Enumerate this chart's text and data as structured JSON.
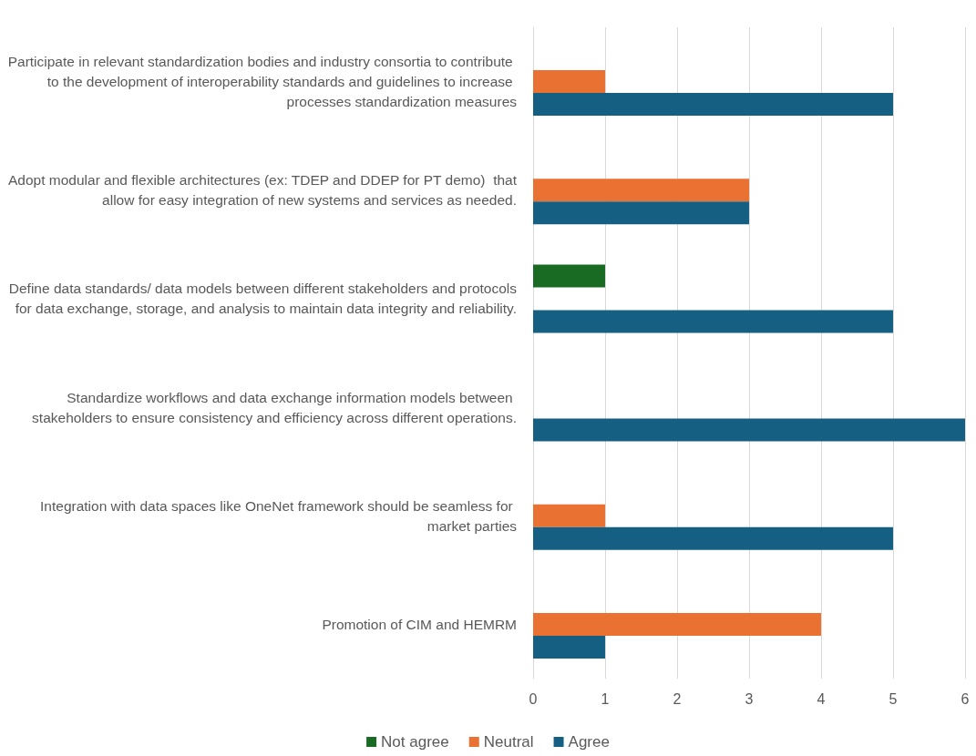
{
  "chart_data": {
    "type": "bar",
    "orientation": "horizontal",
    "categories": [
      "Participate in relevant standardization bodies and industry consortia to contribute to the development of interoperability standards and guidelines to increase processes standardization measures",
      "Adopt modular and flexible architectures (ex: TDEP and DDEP for PT demo)  that allow for easy integration of new systems and services as needed.",
      "Define data standards/ data models between different stakeholders and protocols for data exchange, storage, and analysis to maintain data integrity and reliability.",
      "Standardize workflows and data exchange information models between stakeholders to ensure consistency and efficiency across different operations.",
      "Integration with data spaces like OneNet framework should be seamless for market parties",
      "Promotion of CIM and HEMRM"
    ],
    "series": [
      {
        "name": "Not agree",
        "color": "#196b24",
        "values": [
          null,
          null,
          1,
          null,
          null,
          null
        ]
      },
      {
        "name": "Neutral",
        "color": "#e97132",
        "values": [
          1,
          3,
          null,
          null,
          1,
          4
        ]
      },
      {
        "name": "Agree",
        "color": "#156082",
        "values": [
          5,
          3,
          5,
          6,
          5,
          1
        ]
      }
    ],
    "xlim": [
      0,
      6
    ],
    "xticks": [
      0,
      1,
      2,
      3,
      4,
      5,
      6
    ],
    "grid": "x",
    "legend": "bottom"
  }
}
